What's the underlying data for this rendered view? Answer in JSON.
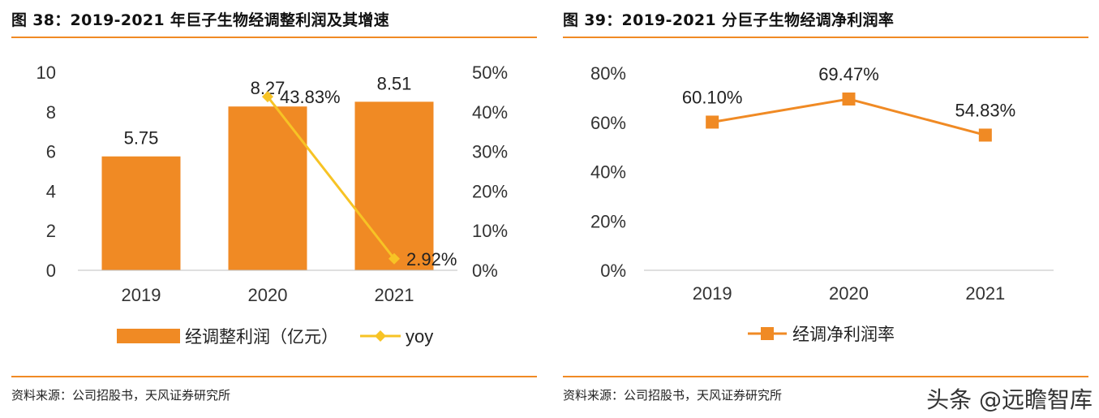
{
  "left_panel": {
    "title": "图 38：2019-2021 年巨子生物经调整利润及其增速",
    "source": "资料来源：公司招股书，天风证券研究所",
    "chart_data": {
      "type": "bar",
      "categories": [
        "2019",
        "2020",
        "2021"
      ],
      "series": [
        {
          "name": "经调整利润（亿元）",
          "type": "bar",
          "axis": "left",
          "values": [
            5.75,
            8.27,
            8.51
          ],
          "labels": [
            "5.75",
            "8.27",
            "8.51"
          ],
          "color": "#f08a24"
        },
        {
          "name": "yoy",
          "type": "line",
          "axis": "right",
          "values": [
            null,
            43.83,
            2.92
          ],
          "labels": [
            "",
            "43.83%",
            "2.92%"
          ],
          "color": "#f7c325"
        }
      ],
      "y_left": {
        "min": 0,
        "max": 10,
        "ticks": [
          "0",
          "2",
          "4",
          "6",
          "8",
          "10"
        ]
      },
      "y_right": {
        "min": 0,
        "max": 50,
        "ticks": [
          "0%",
          "10%",
          "20%",
          "30%",
          "40%",
          "50%"
        ]
      },
      "grid": false,
      "legend": "bottom"
    }
  },
  "right_panel": {
    "title": "图 39：2019-2021 分巨子生物经调净利润率",
    "source": "资料来源：公司招股书，天风证券研究所",
    "chart_data": {
      "type": "line",
      "categories": [
        "2019",
        "2020",
        "2021"
      ],
      "series": [
        {
          "name": "经调净利润率",
          "values": [
            60.1,
            69.47,
            54.83
          ],
          "labels": [
            "60.10%",
            "69.47%",
            "54.83%"
          ],
          "color": "#f08a24"
        }
      ],
      "y": {
        "min": 0,
        "max": 80,
        "ticks": [
          "0%",
          "20%",
          "40%",
          "60%",
          "80%"
        ]
      },
      "grid": false,
      "legend": "bottom"
    }
  },
  "watermark": "头条 @远瞻智库"
}
